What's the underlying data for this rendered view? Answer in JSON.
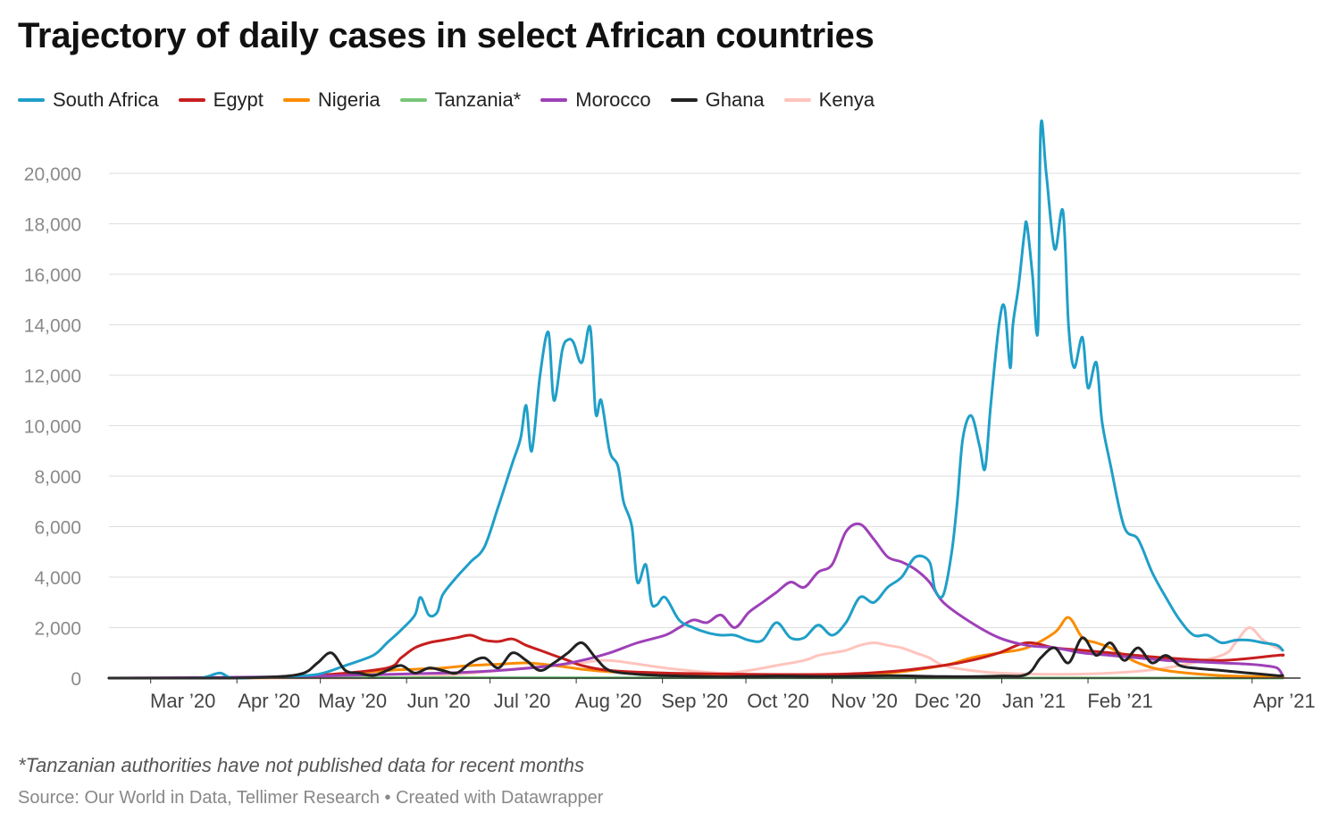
{
  "chart_data": {
    "type": "line",
    "title": "Trajectory of daily cases in select African countries",
    "xlabel": "",
    "ylabel": "",
    "ylim": [
      0,
      22000
    ],
    "yticks": [
      0,
      2000,
      4000,
      6000,
      8000,
      10000,
      12000,
      14000,
      16000,
      18000,
      20000
    ],
    "ytick_labels": [
      "0",
      "2,000",
      "4,000",
      "6,000",
      "8,000",
      "10,000",
      "12,000",
      "14,000",
      "16,000",
      "18,000",
      "20,000"
    ],
    "x_unit": "days since 2020-02-15",
    "xlim": [
      0,
      422
    ],
    "xticks": [
      {
        "label": "Mar ’20",
        "x": 15
      },
      {
        "label": "Apr ’20",
        "x": 46
      },
      {
        "label": "May ’20",
        "x": 76
      },
      {
        "label": "Jun ’20",
        "x": 107
      },
      {
        "label": "Jul ’20",
        "x": 137
      },
      {
        "label": "Aug ’20",
        "x": 168
      },
      {
        "label": "Sep ’20",
        "x": 199
      },
      {
        "label": "Oct ’20",
        "x": 229
      },
      {
        "label": "Nov ’20",
        "x": 260
      },
      {
        "label": "Dec ’20",
        "x": 290
      },
      {
        "label": "Jan ’21",
        "x": 321
      },
      {
        "label": "Feb ’21",
        "x": 352
      },
      {
        "label": "Apr ’21",
        "x": 411
      }
    ],
    "legend_position": "top-left",
    "grid": true,
    "series": [
      {
        "name": "South Africa",
        "color": "#1f9fc8",
        "x": [
          0,
          30,
          35,
          40,
          45,
          60,
          75,
          85,
          95,
          100,
          105,
          110,
          112,
          115,
          118,
          120,
          125,
          130,
          135,
          140,
          145,
          148,
          150,
          152,
          155,
          158,
          160,
          163,
          165,
          167,
          170,
          173,
          175,
          177,
          180,
          183,
          185,
          188,
          190,
          193,
          195,
          197,
          200,
          205,
          210,
          215,
          220,
          225,
          230,
          235,
          240,
          245,
          250,
          255,
          260,
          265,
          270,
          275,
          280,
          285,
          290,
          295,
          297,
          300,
          303,
          305,
          307,
          310,
          313,
          315,
          317,
          320,
          322,
          324,
          325,
          327,
          329,
          330,
          332,
          334,
          335,
          337,
          340,
          343,
          345,
          347,
          350,
          352,
          355,
          357,
          360,
          365,
          370,
          375,
          380,
          385,
          390,
          395,
          400,
          405,
          410,
          415,
          420,
          422
        ],
        "y": [
          0,
          0,
          50,
          200,
          0,
          50,
          150,
          500,
          900,
          1400,
          1900,
          2500,
          3200,
          2500,
          2600,
          3300,
          4000,
          4600,
          5200,
          6800,
          8500,
          9500,
          10800,
          9000,
          12000,
          13700,
          11000,
          13000,
          13400,
          13300,
          12500,
          13900,
          10500,
          11000,
          9000,
          8400,
          7000,
          6000,
          3800,
          4500,
          3000,
          2900,
          3200,
          2300,
          2000,
          1800,
          1700,
          1700,
          1500,
          1500,
          2200,
          1600,
          1600,
          2100,
          1700,
          2200,
          3200,
          3000,
          3600,
          4000,
          4800,
          4600,
          3500,
          3300,
          5000,
          7000,
          9500,
          10400,
          9200,
          8300,
          10800,
          14000,
          14700,
          12300,
          14000,
          15500,
          17500,
          18000,
          16000,
          13800,
          21800,
          20000,
          17000,
          18500,
          14000,
          12300,
          13500,
          11500,
          12500,
          10200,
          8500,
          6000,
          5500,
          4200,
          3200,
          2300,
          1700,
          1700,
          1400,
          1500,
          1500,
          1400,
          1300,
          1100
        ]
      },
      {
        "name": "Egypt",
        "color": "#c71e1d",
        "x": [
          0,
          40,
          60,
          80,
          100,
          105,
          110,
          115,
          120,
          125,
          130,
          135,
          140,
          145,
          150,
          155,
          160,
          165,
          170,
          180,
          200,
          230,
          260,
          280,
          300,
          310,
          320,
          330,
          340,
          350,
          360,
          380,
          400,
          420,
          422
        ],
        "y": [
          0,
          0,
          50,
          150,
          400,
          800,
          1200,
          1400,
          1500,
          1600,
          1700,
          1500,
          1450,
          1550,
          1300,
          1100,
          900,
          700,
          500,
          300,
          200,
          150,
          150,
          250,
          500,
          700,
          1000,
          1400,
          1200,
          1100,
          1000,
          800,
          700,
          900,
          900
        ]
      },
      {
        "name": "Nigeria",
        "color": "#fa8c00",
        "x": [
          0,
          40,
          60,
          80,
          100,
          110,
          120,
          130,
          140,
          150,
          160,
          170,
          180,
          200,
          230,
          260,
          280,
          300,
          310,
          320,
          330,
          340,
          345,
          350,
          355,
          360,
          365,
          370,
          380,
          400,
          420,
          422
        ],
        "y": [
          0,
          0,
          20,
          100,
          300,
          350,
          400,
          500,
          550,
          600,
          500,
          350,
          250,
          150,
          100,
          120,
          200,
          500,
          800,
          1000,
          1200,
          1800,
          2400,
          1600,
          1400,
          1200,
          900,
          600,
          300,
          100,
          50,
          40
        ]
      },
      {
        "name": "Tanzania*",
        "color": "#78c679",
        "x": [
          0,
          30,
          50,
          60,
          70,
          80,
          422
        ],
        "y": [
          0,
          0,
          10,
          40,
          60,
          20,
          0
        ]
      },
      {
        "name": "Morocco",
        "color": "#9e40b8",
        "x": [
          0,
          60,
          120,
          140,
          160,
          170,
          180,
          190,
          200,
          205,
          210,
          215,
          220,
          225,
          230,
          235,
          240,
          245,
          250,
          255,
          260,
          265,
          270,
          275,
          280,
          285,
          290,
          295,
          300,
          310,
          320,
          330,
          340,
          350,
          360,
          370,
          380,
          390,
          400,
          410,
          415,
          420,
          422
        ],
        "y": [
          0,
          50,
          200,
          300,
          500,
          700,
          1000,
          1400,
          1700,
          2000,
          2300,
          2200,
          2500,
          2000,
          2600,
          3000,
          3400,
          3800,
          3600,
          4200,
          4500,
          5800,
          6100,
          5500,
          4800,
          4600,
          4300,
          3800,
          3000,
          2200,
          1600,
          1300,
          1200,
          1000,
          900,
          800,
          700,
          650,
          600,
          550,
          500,
          400,
          100
        ]
      },
      {
        "name": "Ghana",
        "color": "#222222",
        "x": [
          0,
          40,
          60,
          70,
          75,
          80,
          85,
          90,
          95,
          100,
          105,
          110,
          115,
          120,
          125,
          130,
          135,
          140,
          145,
          150,
          155,
          160,
          165,
          170,
          175,
          180,
          190,
          200,
          220,
          240,
          260,
          280,
          300,
          320,
          330,
          335,
          340,
          345,
          350,
          355,
          360,
          365,
          370,
          375,
          380,
          385,
          390,
          400,
          410,
          420,
          422
        ],
        "y": [
          0,
          0,
          50,
          200,
          600,
          1000,
          300,
          200,
          100,
          300,
          500,
          200,
          400,
          300,
          200,
          600,
          800,
          400,
          1000,
          700,
          300,
          600,
          1000,
          1400,
          800,
          300,
          150,
          100,
          50,
          80,
          60,
          100,
          60,
          80,
          150,
          800,
          1200,
          600,
          1600,
          900,
          1400,
          700,
          1200,
          600,
          900,
          500,
          400,
          300,
          200,
          100,
          100
        ]
      },
      {
        "name": "Kenya",
        "color": "#ffc4bd",
        "x": [
          0,
          80,
          100,
          120,
          140,
          160,
          170,
          180,
          200,
          220,
          230,
          240,
          250,
          255,
          260,
          265,
          270,
          275,
          280,
          285,
          290,
          295,
          300,
          310,
          320,
          340,
          360,
          380,
          400,
          405,
          410,
          415,
          420,
          422
        ],
        "y": [
          0,
          0,
          20,
          100,
          300,
          500,
          600,
          700,
          400,
          200,
          300,
          500,
          700,
          900,
          1000,
          1100,
          1300,
          1400,
          1300,
          1200,
          1000,
          800,
          500,
          300,
          200,
          150,
          200,
          400,
          900,
          1400,
          2000,
          1500,
          1200,
          1100
        ]
      }
    ],
    "note": "*Tanzanian authorities have not published data for recent months",
    "source": "Source: Our World in Data, Tellimer Research • Created with Datawrapper"
  }
}
